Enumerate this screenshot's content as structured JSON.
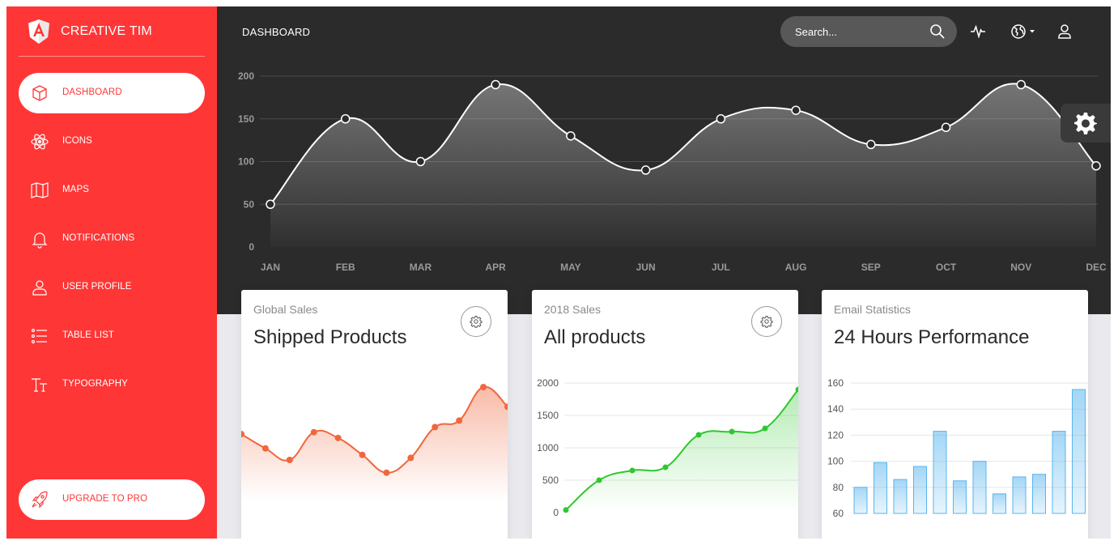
{
  "app": {
    "brand": "CREATIVE TIM",
    "page_title": "DASHBOARD"
  },
  "sidebar": {
    "items": [
      {
        "label": "DASHBOARD",
        "icon": "cube-icon",
        "active": true
      },
      {
        "label": "ICONS",
        "icon": "atom-icon",
        "active": false
      },
      {
        "label": "MAPS",
        "icon": "map-icon",
        "active": false
      },
      {
        "label": "NOTIFICATIONS",
        "icon": "bell-icon",
        "active": false
      },
      {
        "label": "USER PROFILE",
        "icon": "user-icon",
        "active": false
      },
      {
        "label": "TABLE LIST",
        "icon": "list-icon",
        "active": false
      },
      {
        "label": "TYPOGRAPHY",
        "icon": "typography-icon",
        "active": false
      }
    ],
    "upgrade": {
      "label": "UPGRADE TO PRO",
      "icon": "rocket-icon"
    }
  },
  "header": {
    "search": {
      "placeholder": "Search...",
      "value": ""
    },
    "icons": [
      "pulse-icon",
      "globe-icon",
      "user-icon"
    ]
  },
  "colors": {
    "sidebar": "#ff3636",
    "top": "#2b2b2b",
    "orange": "#f0673d",
    "green": "#2ec82e",
    "blue": "#59b5ee"
  },
  "chart_data": [
    {
      "type": "line",
      "x": [
        "JAN",
        "FEB",
        "MAR",
        "APR",
        "MAY",
        "JUN",
        "JUL",
        "AUG",
        "SEP",
        "OCT",
        "NOV",
        "DEC"
      ],
      "values": [
        50,
        150,
        100,
        190,
        130,
        90,
        150,
        160,
        120,
        140,
        190,
        95
      ],
      "yticks": [
        0,
        50,
        100,
        150,
        200
      ],
      "ylim": [
        0,
        200
      ],
      "grid": true
    },
    {
      "type": "line",
      "category": "Global Sales",
      "title": "Shipped Products",
      "values": [
        542,
        480,
        430,
        550,
        525,
        452,
        375,
        439,
        572,
        600,
        745,
        660
      ],
      "ylim": [
        150,
        850
      ],
      "color": "#f0673d",
      "axes_visible": false
    },
    {
      "type": "line",
      "category": "2018 Sales",
      "title": "All products",
      "values": [
        40,
        500,
        650,
        700,
        1200,
        1250,
        1300,
        1900
      ],
      "yticks": [
        0,
        500,
        1000,
        1500,
        2000
      ],
      "ylim": [
        0,
        2000
      ],
      "color": "#2ec82e"
    },
    {
      "type": "bar",
      "category": "Email Statistics",
      "title": "24 Hours Performance",
      "values": [
        80,
        99,
        86,
        96,
        123,
        85,
        100,
        75,
        88,
        90,
        123,
        155
      ],
      "yticks": [
        60,
        80,
        100,
        120,
        140,
        160
      ],
      "ylim": [
        60,
        160
      ],
      "color": "#59b5ee"
    }
  ]
}
